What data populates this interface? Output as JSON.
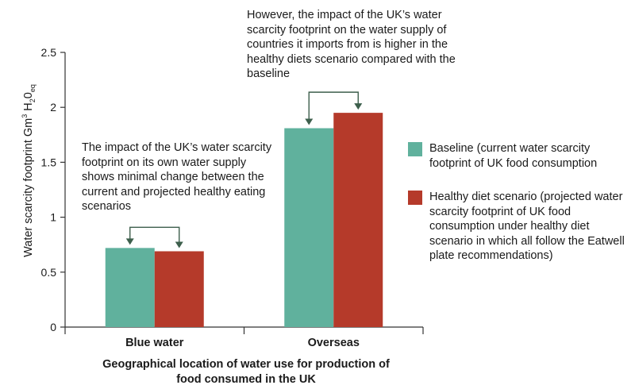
{
  "chart_data": {
    "type": "bar",
    "categories": [
      "Blue water",
      "Overseas"
    ],
    "series": [
      {
        "name": "Baseline (current water scarcity footprint of UK food consumption",
        "values": [
          0.72,
          1.81
        ],
        "color": "#60b19d"
      },
      {
        "name": "Healthy diet scenario (projected water scarcity footprint of UK food consumption under healthy diet scenario in which all follow the Eatwell plate recommendations)",
        "values": [
          0.69,
          1.95
        ],
        "color": "#b53a2a"
      }
    ],
    "ylim": [
      0,
      2.5
    ],
    "yticks": [
      "0",
      "0.5",
      "1",
      "1.5",
      "2",
      "2.5"
    ],
    "xlabel": "Geographical location of water use for production of food consumed in the UK",
    "ylabel": {
      "main": "Water scarcity footprint Gm",
      "sup": "3",
      "mid1": " H",
      "sub1": "2",
      "mid2": "0",
      "sub2": "eq"
    },
    "grid": false,
    "legend_position": "right",
    "annotations": [
      "The impact of the UK’s water scarcity footprint on its own water supply shows minimal change between the current and projected healthy eating scenarios",
      "However, the impact of the UK’s water scarcity footprint on the water supply of countries it imports from is higher in the healthy diets scenario compared with the baseline"
    ],
    "arrow_color": "#3d5f4c"
  }
}
